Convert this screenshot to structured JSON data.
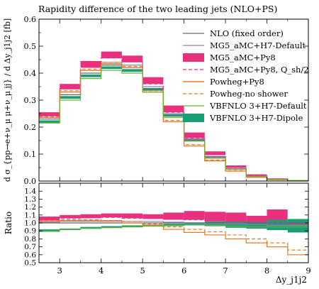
{
  "chart_data": {
    "type": "line",
    "title": "Rapidity difference of the two leading jets (NLO+PS)",
    "xlabel": "Δy_j1j2",
    "ylabel_main": "d σ_{pp→e+ν_μ μ+ν_μ jj} / d Δy_j1j2 [fb]",
    "ylabel_ratio": "Ratio",
    "xlim": [
      2.5,
      9
    ],
    "ylim_main": [
      0,
      0.6
    ],
    "ylim_ratio": [
      0.5,
      1.5
    ],
    "xticks": [
      3,
      4,
      5,
      6,
      7,
      8,
      9
    ],
    "yticks_main": [
      0,
      0.1,
      0.2,
      0.3,
      0.4,
      0.5,
      0.6
    ],
    "yticks_ratio": [
      0.5,
      0.6,
      0.7,
      0.8,
      0.9,
      1.0,
      1.1,
      1.2,
      1.3,
      1.4
    ],
    "x_edges": [
      2.5,
      3.0,
      3.5,
      4.0,
      4.5,
      5.0,
      5.5,
      6.0,
      6.5,
      7.0,
      7.5,
      8.0,
      8.5,
      9.0
    ],
    "legend_position": "top-right",
    "series": [
      {
        "name": "NLO (fixed order)",
        "color": "#666666",
        "style": "line",
        "dash": "",
        "width": 1.2,
        "values": [
          0.23,
          0.32,
          0.4,
          0.43,
          0.42,
          0.34,
          0.24,
          0.15,
          0.085,
          0.044,
          0.017,
          0.006,
          0.002
        ]
      },
      {
        "name": "MG5_aMC+H7-Default",
        "color": "#8a82c8",
        "style": "line",
        "dash": "",
        "width": 1.2,
        "values": [
          0.23,
          0.33,
          0.41,
          0.44,
          0.43,
          0.35,
          0.25,
          0.155,
          0.088,
          0.046,
          0.018,
          0.006,
          0.002
        ]
      },
      {
        "name": "MG5_aMC+Py8",
        "color": "#e8307e",
        "style": "band",
        "dash": "",
        "width": 0,
        "low": [
          0.24,
          0.34,
          0.42,
          0.455,
          0.44,
          0.36,
          0.255,
          0.16,
          0.096,
          0.05,
          0.02,
          0.007,
          0.002
        ],
        "high": [
          0.255,
          0.36,
          0.445,
          0.48,
          0.465,
          0.385,
          0.28,
          0.18,
          0.11,
          0.058,
          0.025,
          0.01,
          0.003
        ]
      },
      {
        "name": "MG5_aMC+Py8, Q_sh/2",
        "color": "#e8307e",
        "style": "line",
        "dash": "5,3",
        "width": 1.2,
        "values": [
          0.242,
          0.342,
          0.425,
          0.456,
          0.443,
          0.36,
          0.255,
          0.158,
          0.09,
          0.047,
          0.019,
          0.007,
          0.002
        ]
      },
      {
        "name": "Powheg+Py8",
        "color": "#e87a2a",
        "style": "line",
        "dash": "",
        "width": 1.4,
        "values": [
          0.235,
          0.33,
          0.41,
          0.435,
          0.42,
          0.33,
          0.22,
          0.13,
          0.075,
          0.037,
          0.014,
          0.005,
          0.0012
        ]
      },
      {
        "name": "Powheg-no shower",
        "color": "#e87a2a",
        "style": "line",
        "dash": "5,3",
        "width": 1.2,
        "values": [
          0.238,
          0.335,
          0.415,
          0.44,
          0.425,
          0.335,
          0.225,
          0.135,
          0.078,
          0.039,
          0.015,
          0.005,
          0.0013
        ]
      },
      {
        "name": "VBFNLO 3+H7-Default",
        "color": "#6ab42a",
        "style": "line",
        "dash": "",
        "width": 1.2,
        "values": [
          0.215,
          0.3,
          0.38,
          0.41,
          0.4,
          0.33,
          0.235,
          0.148,
          0.085,
          0.044,
          0.017,
          0.006,
          0.002
        ]
      },
      {
        "name": "VBFNLO 3+H7-Dipole",
        "color": "#1a9e78",
        "style": "band",
        "dash": "",
        "width": 0,
        "low": [
          0.215,
          0.305,
          0.385,
          0.415,
          0.405,
          0.335,
          0.24,
          0.15,
          0.087,
          0.045,
          0.018,
          0.006,
          0.002
        ],
        "high": [
          0.225,
          0.315,
          0.395,
          0.425,
          0.415,
          0.345,
          0.248,
          0.158,
          0.093,
          0.049,
          0.02,
          0.007,
          0.002
        ]
      }
    ],
    "ratio_series": [
      {
        "name": "MG5_aMC+Py8",
        "color": "#e8307e",
        "style": "band",
        "low": [
          1.03,
          1.06,
          1.06,
          1.07,
          1.06,
          1.05,
          1.04,
          1.04,
          1.02,
          1.01,
          0.93,
          0.93,
          0.9
        ],
        "high": [
          1.08,
          1.1,
          1.11,
          1.12,
          1.12,
          1.11,
          1.13,
          1.15,
          1.14,
          1.13,
          1.09,
          1.17,
          1.02
        ]
      },
      {
        "name": "VBFNLO 3+H7-Dipole",
        "color": "#1a9e78",
        "style": "band",
        "low": [
          0.89,
          0.91,
          0.93,
          0.94,
          0.95,
          0.96,
          0.96,
          0.97,
          0.96,
          0.94,
          0.93,
          0.91,
          0.88
        ],
        "high": [
          0.92,
          0.93,
          0.95,
          0.96,
          0.97,
          0.98,
          0.99,
          1.01,
          1.02,
          1.02,
          1.02,
          1.04,
          1.05
        ]
      },
      {
        "name": "NLO (fixed order)",
        "color": "#666666",
        "style": "line",
        "dash": "",
        "values": [
          1.0,
          1.0,
          1.0,
          1.0,
          1.0,
          1.0,
          1.0,
          1.0,
          1.0,
          1.0,
          1.0,
          1.0,
          1.0
        ]
      },
      {
        "name": "MG5_aMC+H7-Default",
        "color": "#8a82c8",
        "style": "line",
        "dash": "",
        "values": [
          1.01,
          1.02,
          1.02,
          1.03,
          1.02,
          1.02,
          1.01,
          1.0,
          0.99,
          0.99,
          0.98,
          0.97,
          0.97
        ]
      },
      {
        "name": "MG5_aMC+Py8, Q_sh/2",
        "color": "#e8307e",
        "style": "line",
        "dash": "5,3",
        "values": [
          1.05,
          1.06,
          1.07,
          1.07,
          1.06,
          1.06,
          1.05,
          1.04,
          1.03,
          1.02,
          1.01,
          1.0,
          0.99
        ]
      },
      {
        "name": "Powheg+Py8",
        "color": "#e87a2a",
        "style": "line",
        "dash": "",
        "values": [
          1.02,
          1.03,
          1.03,
          1.02,
          1.0,
          0.97,
          0.92,
          0.88,
          0.85,
          0.8,
          0.75,
          0.7,
          0.6
        ]
      },
      {
        "name": "Powheg-no shower",
        "color": "#e87a2a",
        "style": "line",
        "dash": "5,3",
        "values": [
          1.03,
          1.04,
          1.04,
          1.03,
          1.02,
          0.99,
          0.95,
          0.92,
          0.89,
          0.85,
          0.8,
          0.75,
          0.66
        ]
      },
      {
        "name": "VBFNLO 3+H7-Default",
        "color": "#6ab42a",
        "style": "line",
        "dash": "",
        "values": [
          0.9,
          0.92,
          0.93,
          0.94,
          0.95,
          0.96,
          0.97,
          0.98,
          0.97,
          0.96,
          0.95,
          0.95,
          0.95
        ]
      }
    ]
  }
}
